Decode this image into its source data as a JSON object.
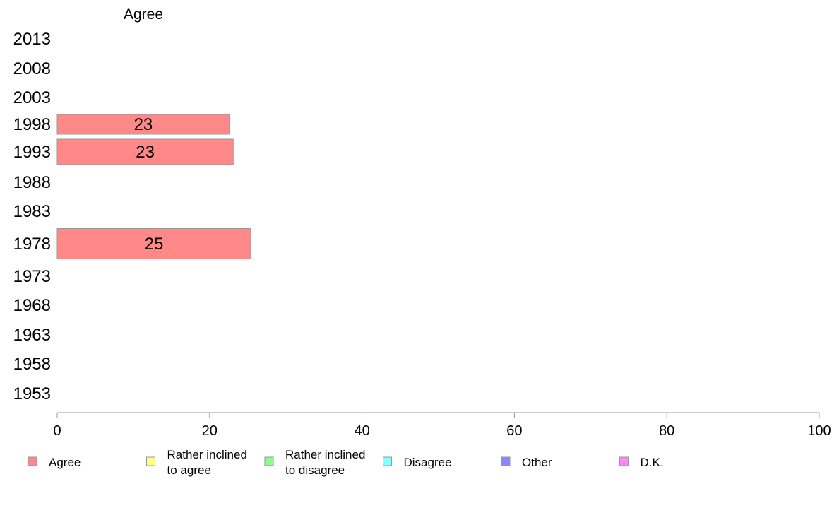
{
  "chart_data": {
    "type": "bar",
    "orientation": "horizontal",
    "column_title": "Agree",
    "categories": [
      "2013",
      "2008",
      "2003",
      "1998",
      "1993",
      "1988",
      "1983",
      "1978",
      "1973",
      "1968",
      "1963",
      "1958",
      "1953"
    ],
    "series": [
      {
        "name": "Agree",
        "color": "#ff8888",
        "values": [
          null,
          null,
          null,
          22.6,
          23.1,
          null,
          null,
          25.4,
          null,
          null,
          null,
          null,
          null
        ],
        "labels": [
          "",
          "",
          "",
          "23",
          "23",
          "",
          "",
          "25",
          "",
          "",
          "",
          "",
          ""
        ]
      }
    ],
    "xlim": [
      0,
      100
    ],
    "xticks": [
      0,
      20,
      40,
      60,
      80,
      100
    ],
    "grid": false,
    "legend": {
      "placement": "bottom",
      "items": [
        {
          "lines": [
            "Agree"
          ],
          "color": "#ff8888"
        },
        {
          "lines": [
            "Rather inclined",
            "to agree"
          ],
          "color": "#ffff88"
        },
        {
          "lines": [
            "Rather inclined",
            "to disagree"
          ],
          "color": "#88ff88"
        },
        {
          "lines": [
            "Disagree"
          ],
          "color": "#88ffff"
        },
        {
          "lines": [
            "Other"
          ],
          "color": "#8888ff"
        },
        {
          "lines": [
            "D.K."
          ],
          "color": "#ff88ff"
        }
      ]
    }
  }
}
